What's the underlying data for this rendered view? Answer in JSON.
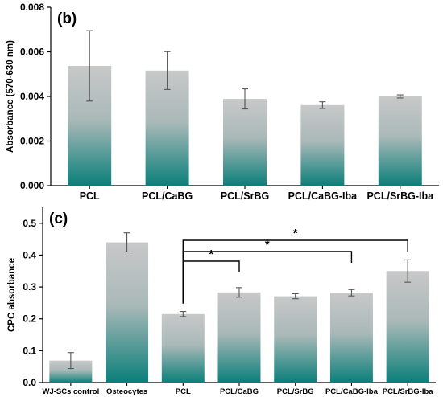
{
  "chart_data": [
    {
      "type": "bar",
      "panel": "(b)",
      "ylabel": "Absorbance (570-630 nm)",
      "xlabel": "",
      "ylim": [
        0,
        0.008
      ],
      "yticks": [
        "0.000",
        "0.002",
        "0.004",
        "0.006",
        "0.008"
      ],
      "yticks_values": [
        0,
        0.002,
        0.004,
        0.006,
        0.008
      ],
      "categories": [
        "PCL",
        "PCL/CaBG",
        "PCL/SrBG",
        "PCL/CaBG-Iba",
        "PCL/SrBG-Iba"
      ],
      "values": [
        0.00537,
        0.00516,
        0.00389,
        0.00361,
        0.004
      ],
      "errors": [
        0.00158,
        0.00085,
        0.00045,
        0.00015,
        7e-05
      ],
      "grid": false,
      "colors": {
        "bar_top": "#c8c8c8",
        "bar_bottom": "#0b7f7a"
      }
    },
    {
      "type": "bar",
      "panel": "(c)",
      "ylabel": "CPC absorbance",
      "xlabel": "",
      "ylim": [
        0,
        0.55
      ],
      "yticks": [
        "0.0",
        "0.1",
        "0.2",
        "0.3",
        "0.4",
        "0.5"
      ],
      "yticks_values": [
        0,
        0.1,
        0.2,
        0.3,
        0.4,
        0.5
      ],
      "categories": [
        "WJ-SCs control",
        "Osteocytes",
        "PCL",
        "PCL/CaBG",
        "PCL/SrBG",
        "PCL/CaBG-Iba",
        "PCL/SrBG-Iba"
      ],
      "values": [
        0.069,
        0.44,
        0.215,
        0.283,
        0.271,
        0.282,
        0.35
      ],
      "errors": [
        0.025,
        0.03,
        0.008,
        0.015,
        0.008,
        0.01,
        0.035
      ],
      "significance": [
        {
          "from": "PCL",
          "to": "PCL/CaBG",
          "label": "*"
        },
        {
          "from": "PCL",
          "to": "PCL/CaBG-Iba",
          "label": "*"
        },
        {
          "from": "PCL",
          "to": "PCL/SrBG-Iba",
          "label": "*"
        }
      ],
      "grid": false,
      "colors": {
        "bar_top": "#c8c8c8",
        "bar_bottom": "#0b7f7a"
      }
    }
  ]
}
